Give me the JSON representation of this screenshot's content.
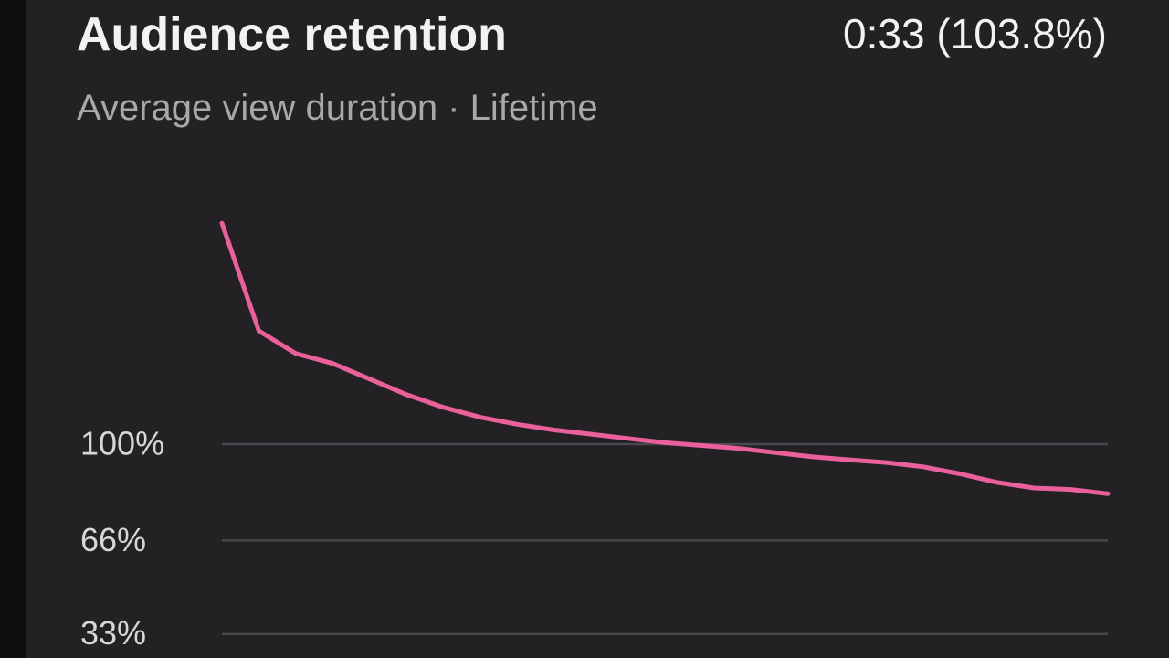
{
  "chart_data": {
    "type": "line",
    "title": "Audience retention",
    "stat": "0:33 (103.8%)",
    "subtitle": "Average view duration · Lifetime",
    "series": [
      {
        "color": "#e9609b",
        "values": [
          178,
          140,
          132,
          128.5,
          123,
          117.5,
          113,
          109.5,
          107,
          105,
          103.5,
          102,
          100.5,
          99.5,
          98.5,
          97,
          95.5,
          94.5,
          93.5,
          92,
          89.5,
          86.5,
          84.5,
          84,
          82.5
        ]
      }
    ],
    "ylim": [
      25,
      180
    ],
    "yticks": [
      {
        "value": 100,
        "label": "100%"
      },
      {
        "value": 66,
        "label": "66%"
      },
      {
        "value": 33,
        "label": "33%"
      }
    ],
    "grid": true
  }
}
